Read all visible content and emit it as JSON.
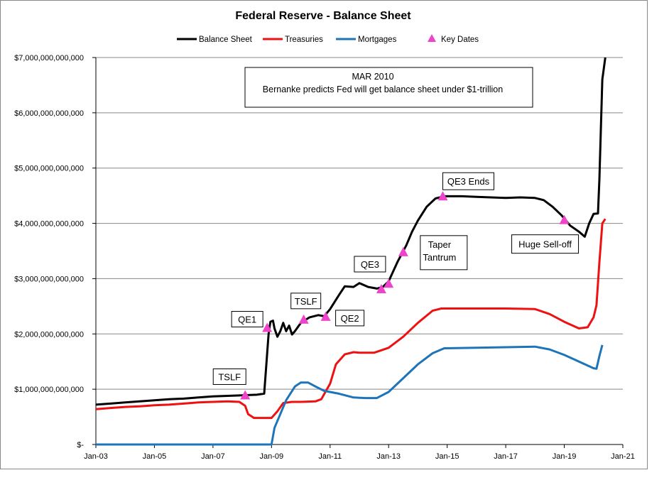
{
  "chart_data": {
    "type": "line",
    "title": "Federal Reserve - Balance Sheet",
    "xlabel": "",
    "ylabel": "",
    "grid": "horizontal",
    "legend_position": "top",
    "x_range": [
      "Jan-03",
      "Jan-21"
    ],
    "ylim": [
      0,
      7000000000000
    ],
    "x_tick_labels": [
      "Jan-03",
      "Jan-05",
      "Jan-07",
      "Jan-09",
      "Jan-11",
      "Jan-13",
      "Jan-15",
      "Jan-17",
      "Jan-19",
      "Jan-21"
    ],
    "y_tick_labels": [
      "$-",
      "$1,000,000,000,000",
      "$2,000,000,000,000",
      "$3,000,000,000,000",
      "$4,000,000,000,000",
      "$5,000,000,000,000",
      "$6,000,000,000,000",
      "$7,000,000,000,000"
    ],
    "series": [
      {
        "name": "Balance Sheet",
        "color": "#000000",
        "points": [
          [
            2003.0,
            0.72
          ],
          [
            2003.5,
            0.74
          ],
          [
            2004.0,
            0.76
          ],
          [
            2004.5,
            0.78
          ],
          [
            2005.0,
            0.8
          ],
          [
            2005.5,
            0.82
          ],
          [
            2006.0,
            0.83
          ],
          [
            2006.5,
            0.85
          ],
          [
            2007.0,
            0.87
          ],
          [
            2007.5,
            0.88
          ],
          [
            2008.0,
            0.89
          ],
          [
            2008.5,
            0.9
          ],
          [
            2008.75,
            0.92
          ],
          [
            2008.9,
            2.0
          ],
          [
            2008.96,
            2.22
          ],
          [
            2009.05,
            2.24
          ],
          [
            2009.1,
            2.1
          ],
          [
            2009.2,
            1.95
          ],
          [
            2009.3,
            2.05
          ],
          [
            2009.4,
            2.2
          ],
          [
            2009.5,
            2.05
          ],
          [
            2009.6,
            2.15
          ],
          [
            2009.7,
            1.99
          ],
          [
            2009.8,
            2.05
          ],
          [
            2010.0,
            2.2
          ],
          [
            2010.3,
            2.3
          ],
          [
            2010.6,
            2.34
          ],
          [
            2010.8,
            2.32
          ],
          [
            2011.0,
            2.45
          ],
          [
            2011.3,
            2.7
          ],
          [
            2011.5,
            2.86
          ],
          [
            2011.8,
            2.85
          ],
          [
            2012.0,
            2.92
          ],
          [
            2012.3,
            2.85
          ],
          [
            2012.6,
            2.82
          ],
          [
            2012.8,
            2.85
          ],
          [
            2013.0,
            2.95
          ],
          [
            2013.3,
            3.3
          ],
          [
            2013.6,
            3.6
          ],
          [
            2013.8,
            3.85
          ],
          [
            2014.0,
            4.05
          ],
          [
            2014.3,
            4.3
          ],
          [
            2014.6,
            4.45
          ],
          [
            2014.9,
            4.49
          ],
          [
            2015.5,
            4.49
          ],
          [
            2016.0,
            4.48
          ],
          [
            2016.5,
            4.47
          ],
          [
            2017.0,
            4.46
          ],
          [
            2017.5,
            4.47
          ],
          [
            2018.0,
            4.46
          ],
          [
            2018.3,
            4.42
          ],
          [
            2018.6,
            4.3
          ],
          [
            2018.9,
            4.15
          ],
          [
            2019.2,
            3.96
          ],
          [
            2019.5,
            3.85
          ],
          [
            2019.7,
            3.76
          ],
          [
            2019.85,
            4.0
          ],
          [
            2020.0,
            4.17
          ],
          [
            2020.15,
            4.18
          ],
          [
            2020.2,
            4.8
          ],
          [
            2020.3,
            6.6
          ],
          [
            2020.4,
            7.0
          ]
        ]
      },
      {
        "name": "Treasuries",
        "color": "#ee1111",
        "points": [
          [
            2003.0,
            0.64
          ],
          [
            2003.5,
            0.66
          ],
          [
            2004.0,
            0.68
          ],
          [
            2004.5,
            0.69
          ],
          [
            2005.0,
            0.71
          ],
          [
            2005.5,
            0.72
          ],
          [
            2006.0,
            0.74
          ],
          [
            2006.5,
            0.76
          ],
          [
            2007.0,
            0.77
          ],
          [
            2007.5,
            0.78
          ],
          [
            2007.9,
            0.77
          ],
          [
            2008.1,
            0.7
          ],
          [
            2008.2,
            0.55
          ],
          [
            2008.4,
            0.48
          ],
          [
            2008.7,
            0.48
          ],
          [
            2009.0,
            0.48
          ],
          [
            2009.2,
            0.6
          ],
          [
            2009.4,
            0.75
          ],
          [
            2009.7,
            0.77
          ],
          [
            2010.0,
            0.77
          ],
          [
            2010.5,
            0.78
          ],
          [
            2010.7,
            0.82
          ],
          [
            2011.0,
            1.1
          ],
          [
            2011.2,
            1.45
          ],
          [
            2011.5,
            1.63
          ],
          [
            2011.8,
            1.67
          ],
          [
            2012.0,
            1.66
          ],
          [
            2012.5,
            1.66
          ],
          [
            2013.0,
            1.75
          ],
          [
            2013.5,
            1.95
          ],
          [
            2014.0,
            2.2
          ],
          [
            2014.5,
            2.42
          ],
          [
            2014.8,
            2.46
          ],
          [
            2016.0,
            2.46
          ],
          [
            2017.0,
            2.46
          ],
          [
            2018.0,
            2.45
          ],
          [
            2018.5,
            2.36
          ],
          [
            2019.0,
            2.22
          ],
          [
            2019.5,
            2.1
          ],
          [
            2019.8,
            2.12
          ],
          [
            2020.0,
            2.3
          ],
          [
            2020.1,
            2.52
          ],
          [
            2020.2,
            3.3
          ],
          [
            2020.3,
            4.0
          ],
          [
            2020.4,
            4.08
          ]
        ]
      },
      {
        "name": "Mortgages",
        "color": "#1e74b8",
        "points": [
          [
            2003.0,
            0.0
          ],
          [
            2008.9,
            0.0
          ],
          [
            2009.0,
            0.0
          ],
          [
            2009.1,
            0.3
          ],
          [
            2009.3,
            0.55
          ],
          [
            2009.5,
            0.8
          ],
          [
            2009.8,
            1.05
          ],
          [
            2010.0,
            1.12
          ],
          [
            2010.25,
            1.12
          ],
          [
            2010.5,
            1.05
          ],
          [
            2010.8,
            0.97
          ],
          [
            2011.3,
            0.92
          ],
          [
            2011.8,
            0.85
          ],
          [
            2012.2,
            0.84
          ],
          [
            2012.6,
            0.84
          ],
          [
            2013.0,
            0.95
          ],
          [
            2013.5,
            1.2
          ],
          [
            2014.0,
            1.45
          ],
          [
            2014.5,
            1.65
          ],
          [
            2014.9,
            1.74
          ],
          [
            2016.0,
            1.75
          ],
          [
            2017.0,
            1.76
          ],
          [
            2018.0,
            1.77
          ],
          [
            2018.5,
            1.72
          ],
          [
            2019.0,
            1.62
          ],
          [
            2019.5,
            1.5
          ],
          [
            2020.0,
            1.38
          ],
          [
            2020.1,
            1.37
          ],
          [
            2020.2,
            1.6
          ],
          [
            2020.3,
            1.8
          ]
        ]
      },
      {
        "name": "Key Dates",
        "color": "#ee44cc",
        "marker": "triangle",
        "points": [
          [
            2008.1,
            0.88
          ],
          [
            2008.85,
            2.1
          ],
          [
            2010.1,
            2.25
          ],
          [
            2010.85,
            2.3
          ],
          [
            2012.75,
            2.8
          ],
          [
            2013.0,
            2.9
          ],
          [
            2013.5,
            3.47
          ],
          [
            2014.85,
            4.48
          ],
          [
            2019.0,
            4.05
          ]
        ]
      }
    ],
    "y_unit_note": "trillions",
    "annotations": [
      {
        "text": "TSLF",
        "x": 2008.1,
        "y": 0.88
      },
      {
        "text": "QE1",
        "x": 2008.85,
        "y": 2.1
      },
      {
        "text": "TSLF",
        "x": 2010.1,
        "y": 2.25
      },
      {
        "text": "QE2",
        "x": 2010.85,
        "y": 2.3
      },
      {
        "text": "QE3",
        "x": 2012.75,
        "y": 2.8
      },
      {
        "text": "Taper\nTantrum",
        "x": 2013.5,
        "y": 3.47
      },
      {
        "text": "QE3 Ends",
        "x": 2014.85,
        "y": 4.48
      },
      {
        "text": "Huge Sell-off",
        "x": 2019.0,
        "y": 4.05
      }
    ],
    "note_box": {
      "line1": "MAR 2010",
      "line2": "Bernanke predicts Fed will get balance sheet under $1-trillion"
    }
  }
}
